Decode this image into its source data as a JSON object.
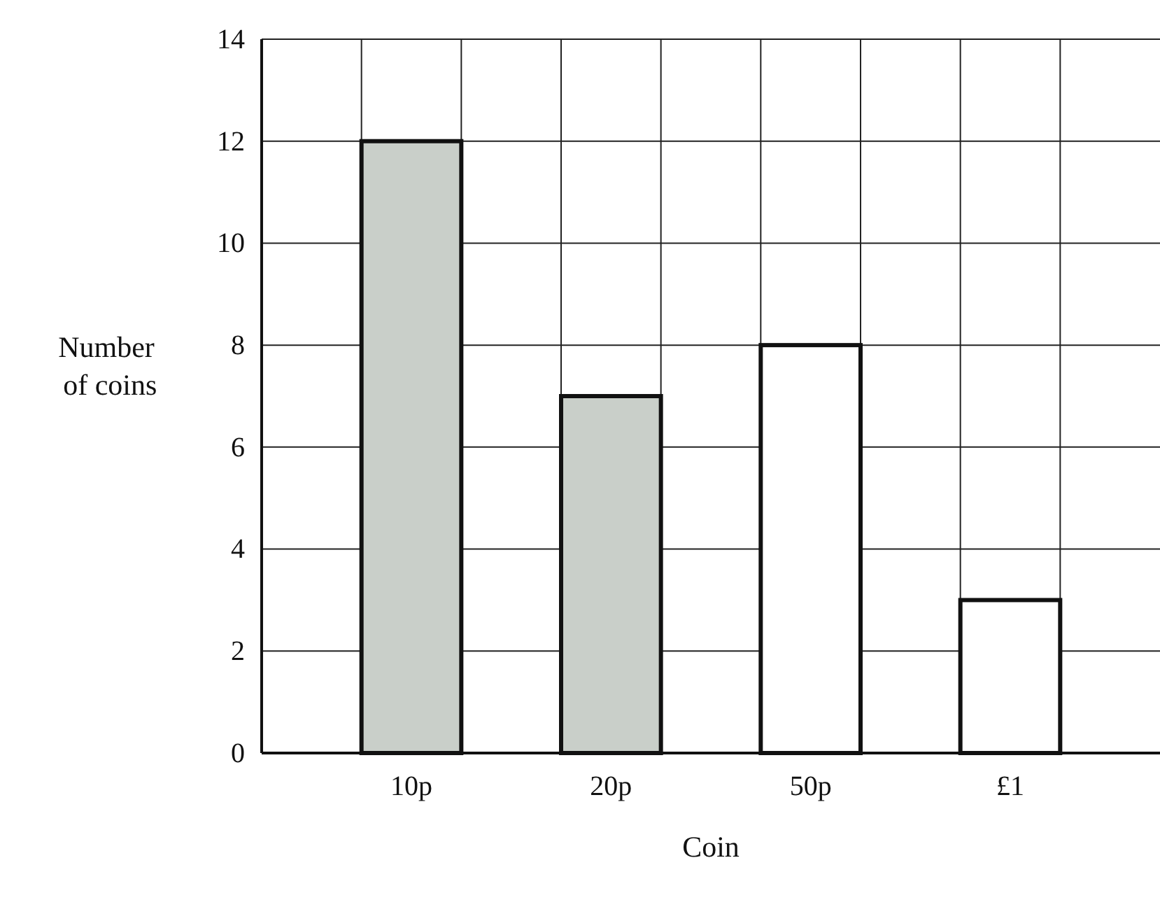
{
  "chart_data": {
    "type": "bar",
    "xlabel": "Coin",
    "ylabel": "Number of coins",
    "categories": [
      "10p",
      "20p",
      "50p",
      "£1"
    ],
    "values": [
      12,
      7,
      8,
      3
    ],
    "colors": [
      "#c9cfc9",
      "#c9cfc9",
      "#ffffff",
      "#ffffff"
    ],
    "ylim": [
      0,
      14
    ],
    "yticks": [
      0,
      2,
      4,
      6,
      8,
      10,
      12,
      14
    ],
    "grid": true
  }
}
